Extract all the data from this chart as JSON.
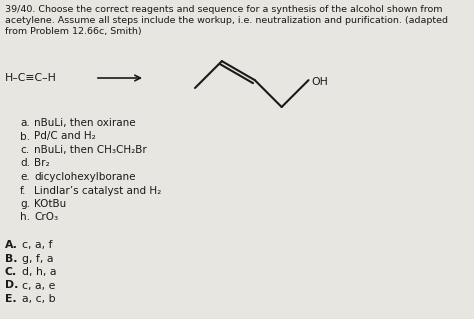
{
  "title_line1": "39/40. Choose the correct reagents and sequence for a synthesis of the alcohol shown from",
  "title_line2": "acetylene. Assume all steps include the workup, i.e. neutralization and purification. (adapted",
  "title_line3": "from Problem 12.66c, Smith)",
  "reagent_items": [
    [
      "a.",
      "nBuLi, then oxirane"
    ],
    [
      "b.",
      "Pd/C and H₂"
    ],
    [
      "c.",
      "nBuLi, then CH₃CH₂Br"
    ],
    [
      "d.",
      "Br₂"
    ],
    [
      "e.",
      "dicyclohexylborane"
    ],
    [
      "f.",
      "Lindlar’s catalyst and H₂"
    ],
    [
      "g.",
      "KOtBu"
    ],
    [
      "h.",
      "CrO₃"
    ]
  ],
  "answer_items": [
    [
      "A.",
      "c, a, f"
    ],
    [
      "B.",
      "g, f, a"
    ],
    [
      "C.",
      "d, h, a"
    ],
    [
      "D.",
      "c, a, e"
    ],
    [
      "E.",
      "a, c, b"
    ]
  ],
  "background_color": "#e8e6e0",
  "text_color": "#1a1a1a",
  "font_size_title": 6.8,
  "font_size_body": 7.8,
  "font_size_reagent": 7.5
}
